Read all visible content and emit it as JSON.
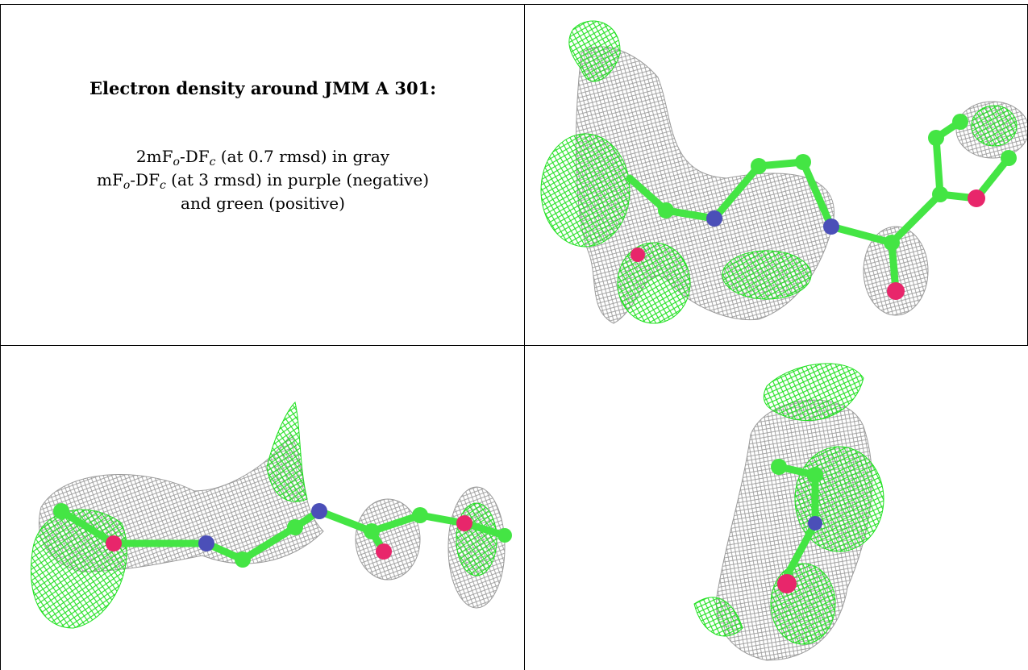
{
  "caption": {
    "title": "Electron density around JMM A 301:",
    "line1": {
      "a": "2mF",
      "b": "o",
      "c": "-DF",
      "d": "c",
      "e": " (at 0.7 rmsd) in gray"
    },
    "line2": {
      "a": "mF",
      "b": "o",
      "c": "-DF",
      "d": "c",
      "e": " (at 3 rmsd) in purple (negative)"
    },
    "line3": "and green (positive)"
  },
  "colors": {
    "carbon": "#44e544",
    "nitrogen": "#4b4fb8",
    "oxygen": "#e8266b",
    "mesh_2fofc": "#9a9a9a",
    "mesh_positive": "#1fe01f",
    "border": "#000000"
  },
  "panels": [
    {
      "name": "view-top-right"
    },
    {
      "name": "view-bottom-left"
    },
    {
      "name": "view-bottom-right"
    }
  ]
}
